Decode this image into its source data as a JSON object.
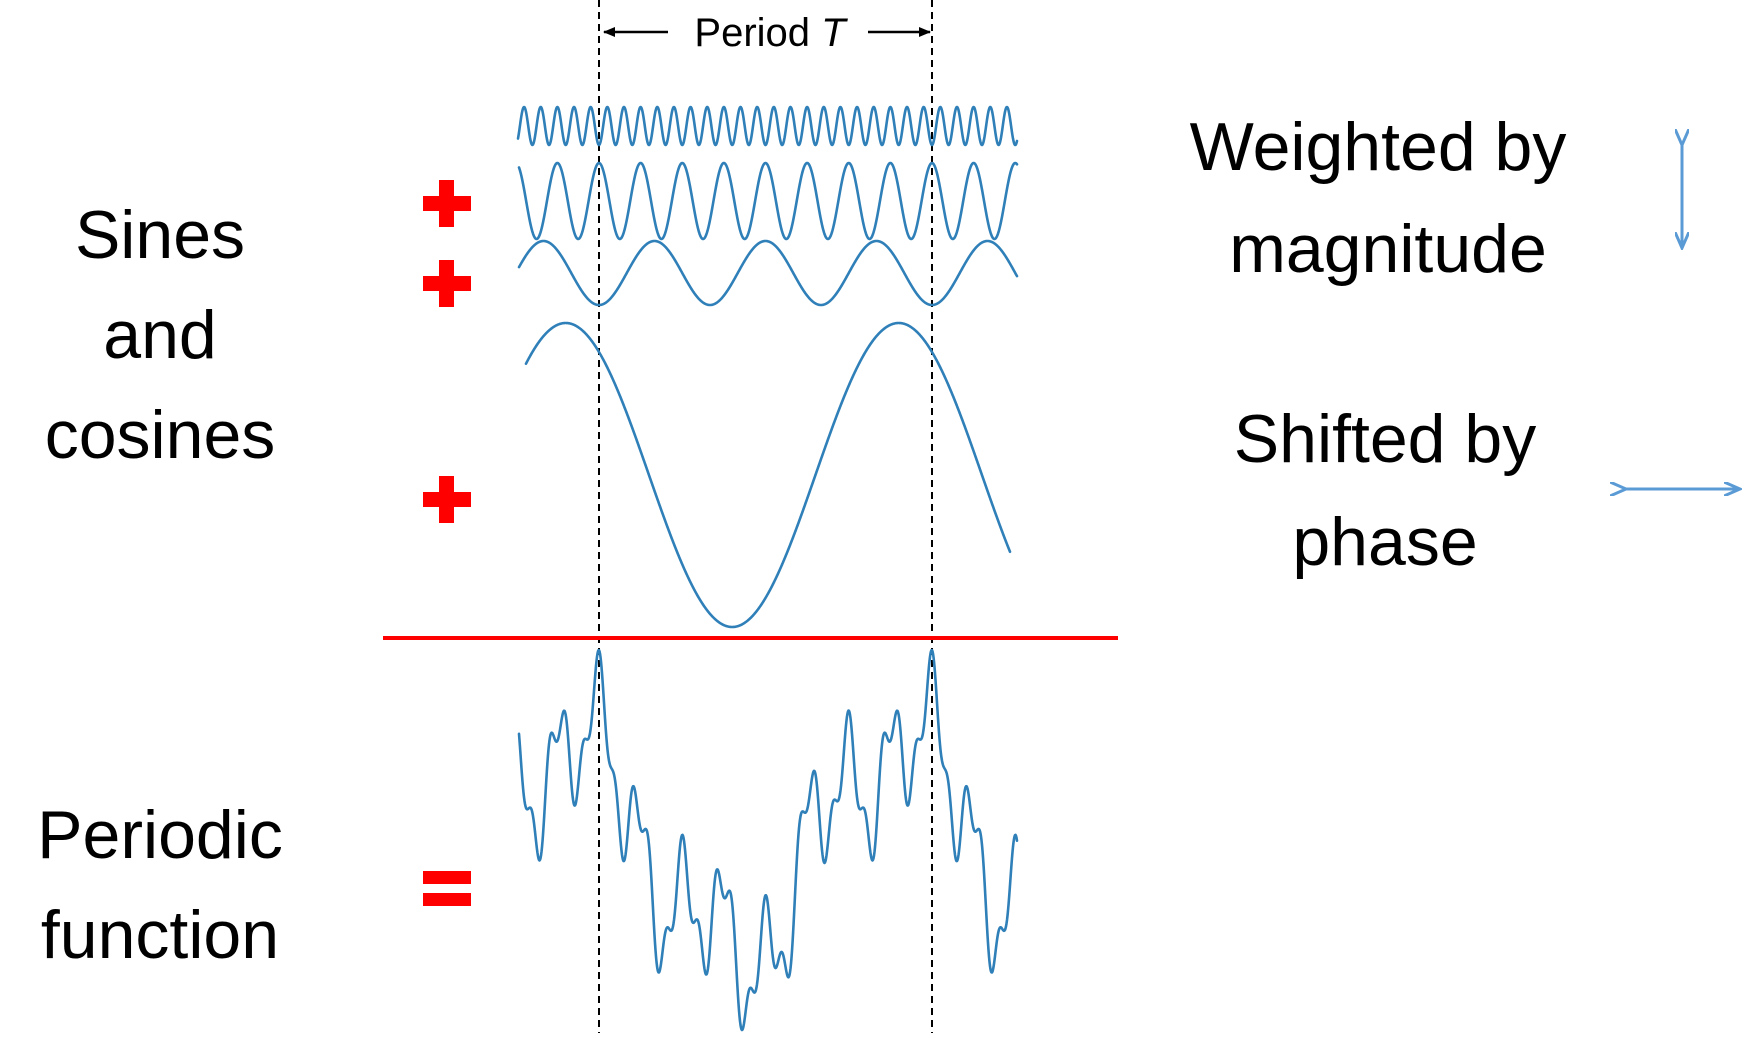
{
  "labels": {
    "left_top_line1": "Sines",
    "left_top_line2": "and",
    "left_top_line3": "cosines",
    "left_bottom_line1": "Periodic",
    "left_bottom_line2": "function",
    "right_top_line1": "Weighted by",
    "right_top_line2": "magnitude",
    "right_mid_line1": "Shifted by",
    "right_mid_line2": "phase",
    "period_text": "Period ",
    "period_symbol": "T"
  },
  "operators": {
    "plus": "+",
    "equals": "="
  },
  "colors": {
    "wave": "#2f7fb8",
    "operator": "#ff0000",
    "divider": "#ff0000",
    "arrow": "#5b9bd5",
    "text": "#000000",
    "guide": "#000000"
  },
  "icons": {
    "magnitude": "vertical-double-arrow-icon",
    "phase": "horizontal-double-arrow-icon"
  },
  "components": [
    {
      "name": "harmonic-1",
      "cycles_per_period": 1,
      "amplitude": 1.0
    },
    {
      "name": "harmonic-3",
      "cycles_per_period": 3,
      "amplitude": 0.35
    },
    {
      "name": "harmonic-8",
      "cycles_per_period": 8,
      "amplitude": 0.5
    },
    {
      "name": "harmonic-20",
      "cycles_per_period": 20,
      "amplitude": 0.22
    }
  ]
}
